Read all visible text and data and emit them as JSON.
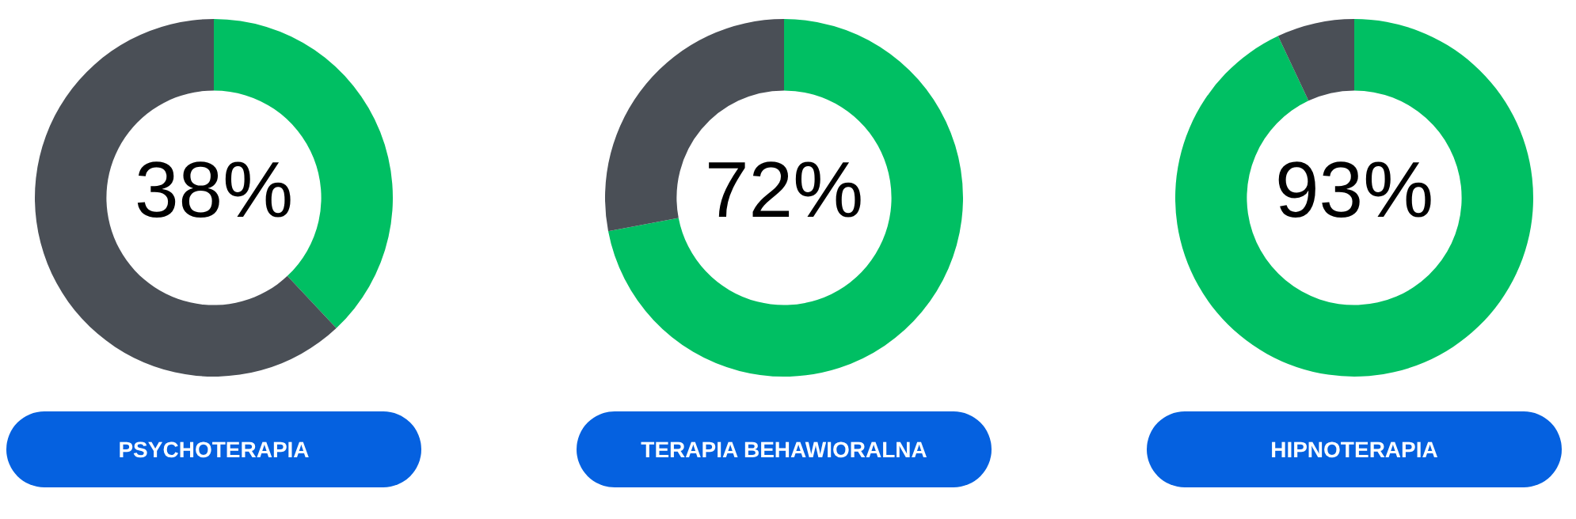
{
  "chart_data": [
    {
      "type": "donut",
      "title": "PSYCHOTERAPIA",
      "categories": [
        null,
        null
      ],
      "values": [
        38,
        62
      ],
      "colors": [
        "#00bf63",
        "#4a4f56"
      ],
      "value_labels": [
        "38%",
        null
      ]
    },
    {
      "type": "donut",
      "title": "TERAPIA BEHAWIORALNA",
      "categories": [
        null,
        null
      ],
      "values": [
        72,
        28
      ],
      "colors": [
        "#00bf63",
        "#4a4f56"
      ],
      "value_labels": [
        "72%",
        null
      ]
    },
    {
      "type": "donut",
      "title": "HIPNOTERAPIA",
      "categories": [
        null,
        null
      ],
      "values": [
        93,
        7
      ],
      "colors": [
        "#00bf63",
        "#4a4f56"
      ],
      "value_labels": [
        "93%",
        null
      ]
    }
  ]
}
